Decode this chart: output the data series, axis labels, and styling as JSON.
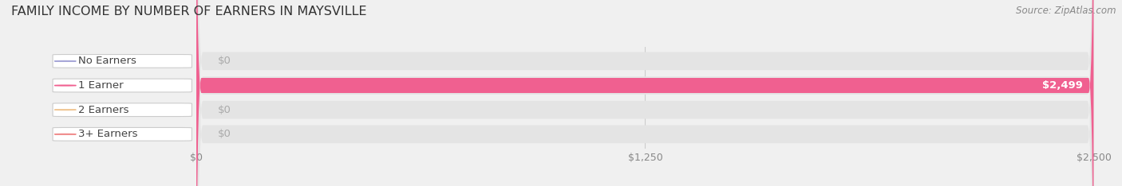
{
  "title": "FAMILY INCOME BY NUMBER OF EARNERS IN MAYSVILLE",
  "source": "Source: ZipAtlas.com",
  "categories": [
    "No Earners",
    "1 Earner",
    "2 Earners",
    "3+ Earners"
  ],
  "values": [
    0,
    2499,
    0,
    0
  ],
  "bar_colors": [
    "#a8a8d8",
    "#f06090",
    "#f0c898",
    "#f09090"
  ],
  "bg_color": "#f0f0f0",
  "bar_bg_color": "#e4e4e4",
  "xlim": [
    0,
    2500
  ],
  "xticks": [
    0,
    1250,
    2500
  ],
  "xtick_labels": [
    "$0",
    "$1,250",
    "$2,500"
  ],
  "bar_height": 0.62,
  "value_label_color_inside": "#ffffff",
  "value_label_color_outside": "#aaaaaa",
  "title_fontsize": 11.5,
  "tick_fontsize": 9,
  "label_fontsize": 9.5,
  "value_fontsize": 9.5
}
